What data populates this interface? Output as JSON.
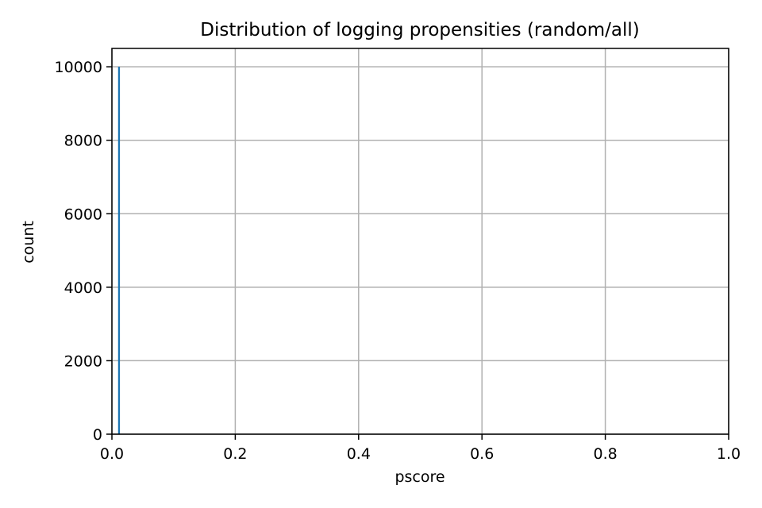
{
  "chart_data": {
    "type": "bar",
    "title": "Distribution of logging propensities (random/all)",
    "xlabel": "pscore",
    "ylabel": "count",
    "xlim": [
      0.0,
      1.0
    ],
    "ylim": [
      0,
      10500
    ],
    "xticks": [
      "0.0",
      "0.2",
      "0.4",
      "0.6",
      "0.8",
      "1.0"
    ],
    "yticks": [
      "0",
      "2000",
      "4000",
      "6000",
      "8000",
      "10000"
    ],
    "grid": true,
    "bars": [
      {
        "x_start": 0.01,
        "x_end": 0.013,
        "count": 10000
      }
    ],
    "bar_color": "#1f77b4"
  }
}
